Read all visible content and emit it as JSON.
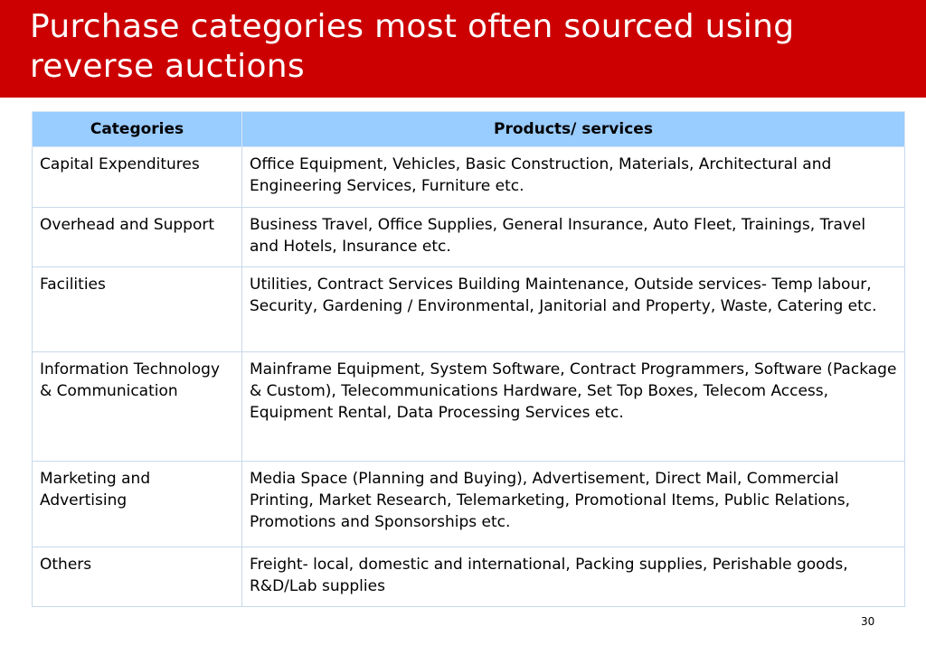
{
  "slide": {
    "title": "Purchase categories most often sourced using reverse auctions",
    "page_number": "30"
  },
  "table": {
    "headers": [
      "Categories",
      "Products/ services"
    ],
    "rows": [
      {
        "category": "Capital Expenditures",
        "products": "Office Equipment, Vehicles, Basic Construction, Materials, Architectural and Engineering Services, Furniture etc."
      },
      {
        "category": "Overhead and Support",
        "products": "Business Travel, Office Supplies, General Insurance, Auto Fleet, Trainings, Travel and Hotels, Insurance etc."
      },
      {
        "category": "Facilities",
        "products": "Utilities, Contract Services Building Maintenance, Outside services- Temp labour, Security, Gardening / Environmental, Janitorial and Property, Waste, Catering etc."
      },
      {
        "category": "Information Technology & Communication",
        "products": "Mainframe Equipment, System Software, Contract Programmers, Software (Package & Custom), Telecommunications Hardware, Set Top Boxes, Telecom Access, Equipment Rental, Data Processing Services etc."
      },
      {
        "category": "Marketing and Advertising",
        "products": "Media Space (Planning and Buying), Advertisement, Direct Mail, Commercial Printing, Market Research, Telemarketing, Promotional Items, Public Relations, Promotions and Sponsorships etc."
      },
      {
        "category": "Others",
        "products": "Freight- local, domestic and international, Packing supplies, Perishable goods, R&D/Lab supplies"
      }
    ]
  },
  "colors": {
    "title_bar": "#cc0000",
    "header_fill": "#99ccff",
    "cell_border": "#c8d9ea"
  }
}
